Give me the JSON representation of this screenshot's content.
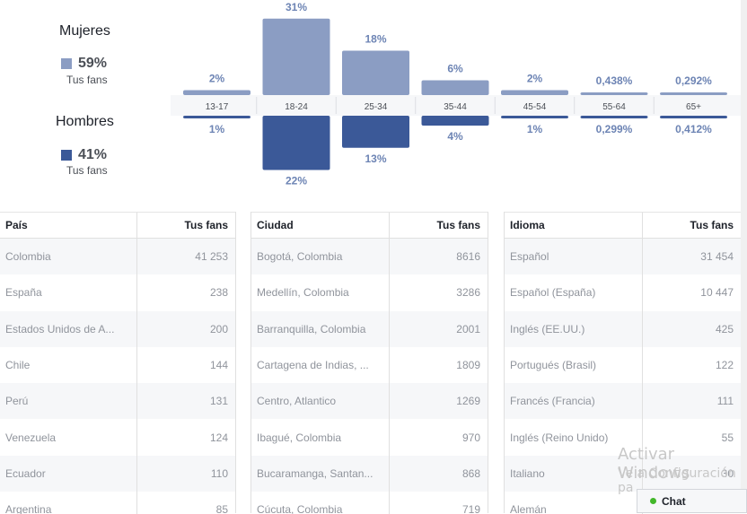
{
  "gender": {
    "women": {
      "label": "Mujeres",
      "pct": "59%",
      "sub": "Tus fans",
      "color": "#8b9dc3"
    },
    "men": {
      "label": "Hombres",
      "pct": "41%",
      "sub": "Tus fans",
      "color": "#3b5998"
    }
  },
  "chart_data": {
    "type": "bar",
    "categories": [
      "13-17",
      "18-24",
      "25-34",
      "35-44",
      "45-54",
      "55-64",
      "65+"
    ],
    "series": [
      {
        "name": "Mujeres",
        "values": [
          2,
          31,
          18,
          6,
          2,
          0.438,
          0.292
        ],
        "labels": [
          "2%",
          "31%",
          "18%",
          "6%",
          "2%",
          "0,438%",
          "0,292%"
        ]
      },
      {
        "name": "Hombres",
        "values": [
          1,
          22,
          13,
          4,
          1,
          0.299,
          0.412
        ],
        "labels": [
          "1%",
          "22%",
          "13%",
          "4%",
          "1%",
          "0,299%",
          "0,412%"
        ]
      }
    ]
  },
  "tables": [
    {
      "header": {
        "name": "País",
        "value": "Tus fans"
      },
      "rows": [
        {
          "name": "Colombia",
          "value": "41 253"
        },
        {
          "name": "España",
          "value": "238"
        },
        {
          "name": "Estados Unidos de A...",
          "value": "200"
        },
        {
          "name": "Chile",
          "value": "144"
        },
        {
          "name": "Perú",
          "value": "131"
        },
        {
          "name": "Venezuela",
          "value": "124"
        },
        {
          "name": "Ecuador",
          "value": "110"
        },
        {
          "name": "Argentina",
          "value": "85"
        }
      ]
    },
    {
      "header": {
        "name": "Ciudad",
        "value": "Tus fans"
      },
      "rows": [
        {
          "name": "Bogotá, Colombia",
          "value": "8616"
        },
        {
          "name": "Medellín, Colombia",
          "value": "3286"
        },
        {
          "name": "Barranquilla, Colombia",
          "value": "2001"
        },
        {
          "name": "Cartagena de Indias, ...",
          "value": "1809"
        },
        {
          "name": "Centro, Atlantico",
          "value": "1269"
        },
        {
          "name": "Ibagué, Colombia",
          "value": "970"
        },
        {
          "name": "Bucaramanga, Santan...",
          "value": "868"
        },
        {
          "name": "Cúcuta, Colombia",
          "value": "719"
        }
      ]
    },
    {
      "header": {
        "name": "Idioma",
        "value": "Tus fans"
      },
      "rows": [
        {
          "name": "Español",
          "value": "31 454"
        },
        {
          "name": "Español (España)",
          "value": "10 447"
        },
        {
          "name": "Inglés (EE.UU.)",
          "value": "425"
        },
        {
          "name": "Portugués (Brasil)",
          "value": "122"
        },
        {
          "name": "Francés (Francia)",
          "value": "111"
        },
        {
          "name": "Inglés (Reino Unido)",
          "value": "55"
        },
        {
          "name": "Italiano",
          "value": "30"
        },
        {
          "name": "Alemán",
          "value": ""
        }
      ]
    }
  ],
  "watermark": {
    "line1": "Activar Windows",
    "line2": "Ve a Configuración pa"
  },
  "chat": {
    "label": "Chat",
    "status_color": "#42b72a"
  }
}
